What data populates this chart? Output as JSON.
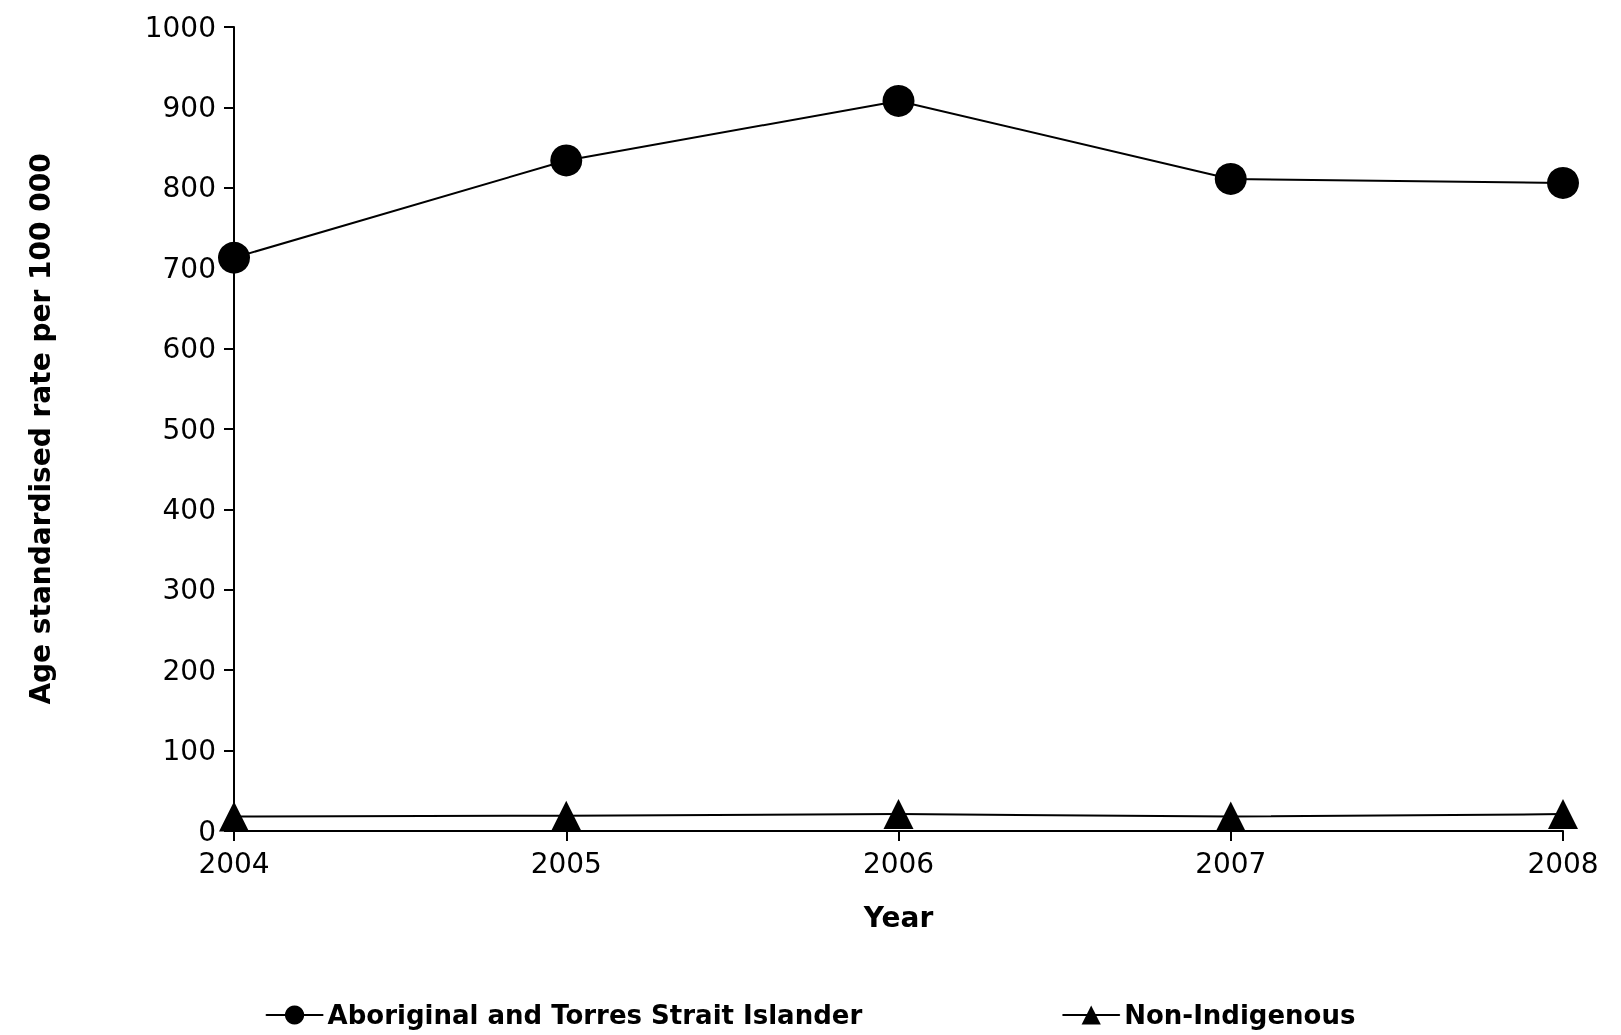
{
  "chart_data": {
    "type": "line",
    "xlabel": "Year",
    "ylabel": "Age standardised rate per 100 000",
    "categories": [
      "2004",
      "2005",
      "2006",
      "2007",
      "2008"
    ],
    "series": [
      {
        "name": "Aboriginal and Torres Strait Islander",
        "color": "#000000",
        "marker": "circle",
        "values": [
          713,
          834,
          908,
          811,
          806
        ]
      },
      {
        "name": "Non-Indigenous",
        "color": "#000000",
        "marker": "triangle",
        "values": [
          18,
          19,
          21,
          18,
          21
        ]
      }
    ],
    "ylim": [
      0,
      1000
    ],
    "yticks": [
      0,
      100,
      200,
      300,
      400,
      500,
      600,
      700,
      800,
      900,
      1000
    ],
    "grid": false,
    "legend": "bottom",
    "line_style": "solid"
  }
}
